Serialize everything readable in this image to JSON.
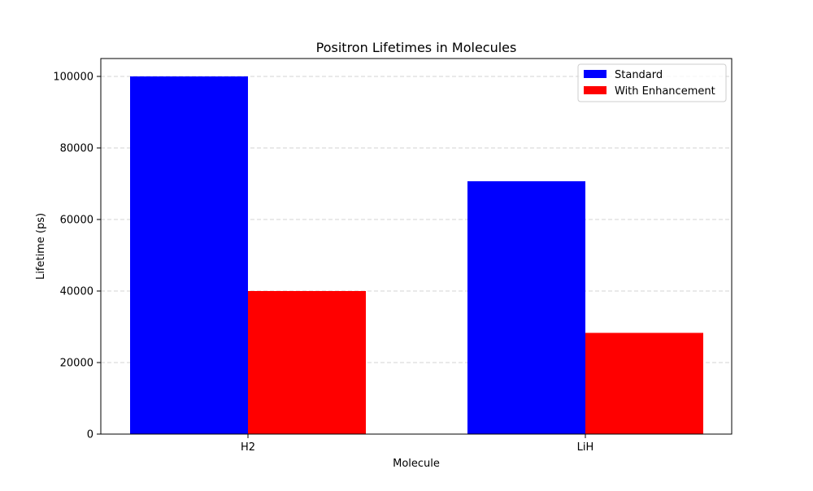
{
  "chart_data": {
    "type": "bar",
    "title": "Positron Lifetimes in Molecules",
    "xlabel": "Molecule",
    "ylabel": "Lifetime (ps)",
    "categories": [
      "H2",
      "LiH"
    ],
    "series": [
      {
        "name": "Standard",
        "color": "#0000ff",
        "values": [
          100000,
          70700
        ]
      },
      {
        "name": "With Enhancement",
        "color": "#ff0000",
        "values": [
          40000,
          28300
        ]
      }
    ],
    "ylim": [
      0,
      105000
    ],
    "yticks": [
      0,
      20000,
      40000,
      60000,
      80000,
      100000
    ],
    "grid": "y-dashed",
    "legend_position": "top-right"
  }
}
